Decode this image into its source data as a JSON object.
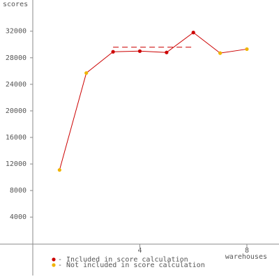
{
  "chart_data": {
    "type": "line",
    "y_label": "scores",
    "x_label": "warehouses",
    "x": [
      1,
      2,
      3,
      4,
      5,
      6,
      7,
      8
    ],
    "values": [
      11100,
      25700,
      28900,
      29000,
      28800,
      31800,
      28700,
      29300
    ],
    "included": [
      false,
      false,
      true,
      true,
      true,
      true,
      false,
      false
    ],
    "line_color": "#cc0000",
    "legend": [
      {
        "name": "- Included in score calculation",
        "color": "#cc0000"
      },
      {
        "name": "- Not included in score calculation",
        "color": "#f0b400"
      }
    ],
    "score_line": {
      "value": 29600,
      "x": [
        3,
        6
      ],
      "color": "#cc0000"
    },
    "xlim": [
      0,
      9.2
    ],
    "xticks": [
      4,
      8
    ],
    "ylim": [
      -4800,
      36700
    ],
    "yticks": [
      4000,
      8000,
      12000,
      16000,
      20000,
      24000,
      28000,
      32000
    ]
  }
}
